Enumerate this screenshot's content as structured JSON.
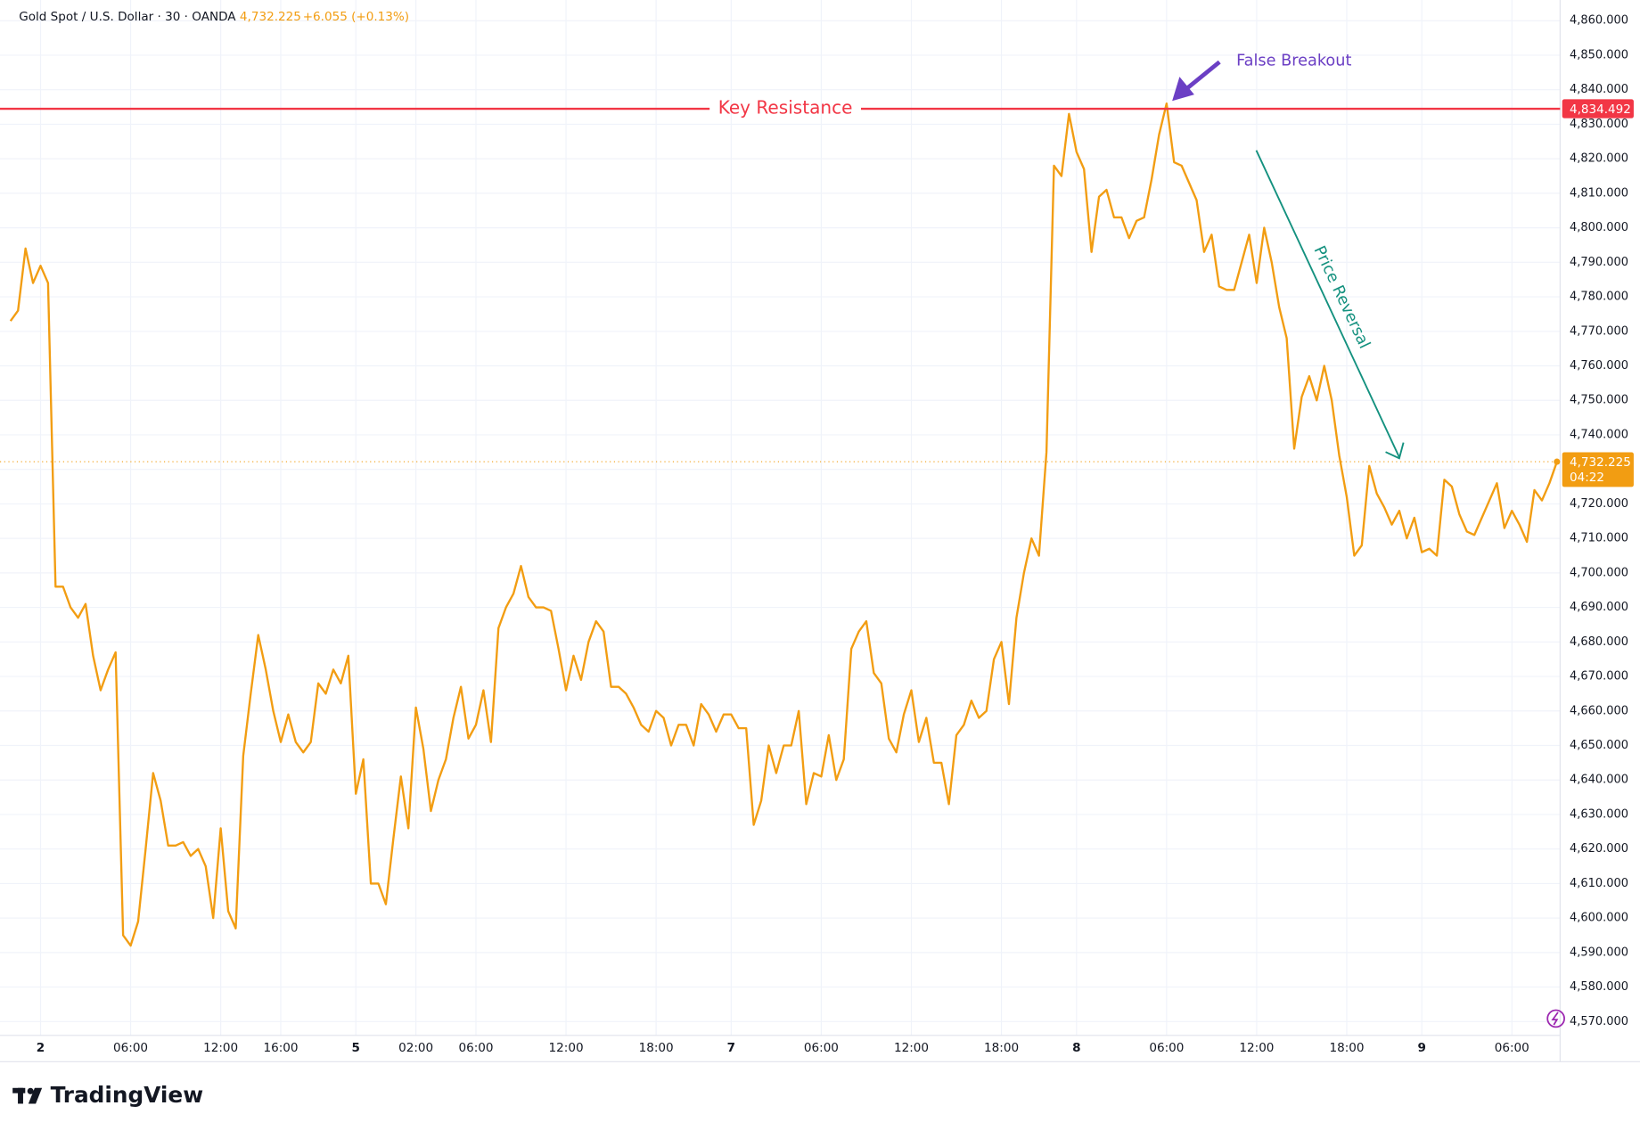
{
  "chart_data": {
    "type": "line",
    "header": {
      "symbol": "Gold Spot / U.S. Dollar · 30 · OANDA",
      "last_price": "4,732.225",
      "change": "+6.055 (+0.13%)",
      "countdown": "04:22"
    },
    "brand": "TradingView",
    "color": "#f29d12",
    "grid": true,
    "categories": [
      null,
      null,
      null,
      null,
      "2",
      null,
      null,
      null,
      null,
      null,
      null,
      null,
      null,
      null,
      null,
      null,
      "06:00",
      null,
      null,
      null,
      null,
      null,
      null,
      null,
      null,
      null,
      null,
      null,
      "12:00",
      null,
      null,
      null,
      null,
      null,
      null,
      null,
      "16:00",
      null,
      null,
      null,
      null,
      null,
      null,
      null,
      null,
      null,
      "5",
      null,
      null,
      null,
      null,
      null,
      null,
      null,
      "02:00",
      null,
      null,
      null,
      null,
      null,
      null,
      null,
      "06:00",
      null,
      null,
      null,
      null,
      null,
      null,
      null,
      null,
      null,
      null,
      null,
      "12:00",
      null,
      null,
      null,
      null,
      null,
      null,
      null,
      null,
      null,
      null,
      null,
      "18:00",
      null,
      null,
      null,
      null,
      null,
      null,
      null,
      null,
      null,
      "7",
      null,
      null,
      null,
      null,
      null,
      null,
      null,
      null,
      null,
      null,
      null,
      "06:00",
      null,
      null,
      null,
      null,
      null,
      null,
      null,
      null,
      null,
      null,
      null,
      "12:00",
      null,
      null,
      null,
      null,
      null,
      null,
      null,
      null,
      null,
      null,
      null,
      "18:00",
      null,
      null,
      null,
      null,
      null,
      null,
      null,
      null,
      null,
      "8",
      null,
      null,
      null,
      null,
      null,
      null,
      null,
      null,
      null,
      null,
      null,
      "06:00",
      null,
      null,
      null,
      null,
      null,
      null,
      null,
      null,
      null,
      null,
      null,
      "12:00",
      null,
      null,
      null,
      null,
      null,
      null,
      null,
      null,
      null,
      null,
      null,
      "18:00",
      null,
      null,
      null,
      null,
      null,
      null,
      null,
      null,
      null,
      "9",
      null,
      null,
      null,
      null,
      null,
      null,
      null,
      null,
      null,
      null,
      null,
      "06:00",
      null,
      null,
      null,
      null,
      null,
      null
    ],
    "values": [
      4773,
      4776,
      4794,
      4784,
      4789,
      4784,
      4696,
      4696,
      4690,
      4687,
      4691,
      4676,
      4666,
      4672,
      4677,
      4595,
      4592,
      4599,
      4620,
      4642,
      4634,
      4621,
      4621,
      4622,
      4618,
      4620,
      4615,
      4600,
      4626,
      4602,
      4597,
      4647,
      4665,
      4682,
      4672,
      4660,
      4651,
      4659,
      4651,
      4648,
      4651,
      4668,
      4665,
      4672,
      4668,
      4676,
      4636,
      4646,
      4610,
      4610,
      4604,
      4623,
      4641,
      4626,
      4661,
      4649,
      4631,
      4640,
      4646,
      4658,
      4667,
      4652,
      4656,
      4666,
      4651,
      4684,
      4690,
      4694,
      4702,
      4693,
      4690,
      4690,
      4689,
      4678,
      4666,
      4676,
      4669,
      4680,
      4686,
      4683,
      4667,
      4667,
      4665,
      4661,
      4656,
      4654,
      4660,
      4658,
      4650,
      4656,
      4656,
      4650,
      4662,
      4659,
      4654,
      4659,
      4659,
      4655,
      4655,
      4627,
      4634,
      4650,
      4642,
      4650,
      4650,
      4660,
      4633,
      4642,
      4641,
      4653,
      4640,
      4646,
      4678,
      4683,
      4686,
      4671,
      4668,
      4652,
      4648,
      4659,
      4666,
      4651,
      4658,
      4645,
      4645,
      4633,
      4653,
      4656,
      4663,
      4658,
      4660,
      4675,
      4680,
      4662,
      4687,
      4700,
      4710,
      4705,
      4735,
      4818,
      4815,
      4833,
      4822,
      4817,
      4793,
      4809,
      4811,
      4803,
      4803,
      4797,
      4802,
      4803,
      4814,
      4827,
      4836,
      4819,
      4818,
      4813,
      4808,
      4793,
      4798,
      4783,
      4782,
      4782,
      4790,
      4798,
      4784,
      4800,
      4790,
      4777,
      4768,
      4736,
      4751,
      4757,
      4750,
      4760,
      4750,
      4734,
      4722,
      4705,
      4708,
      4731,
      4723,
      4719,
      4714,
      4718,
      4710,
      4716,
      4706,
      4707,
      4705,
      4727,
      4725,
      4717,
      4712,
      4711,
      4716,
      4721,
      4726,
      4713,
      4718,
      4714,
      4709,
      4724,
      4721,
      4726,
      4732.225
    ],
    "ylim": [
      4566,
      4866
    ],
    "yticks": [
      {
        "value": 4570,
        "label": "4,570.000"
      },
      {
        "value": 4580,
        "label": "4,580.000"
      },
      {
        "value": 4590,
        "label": "4,590.000"
      },
      {
        "value": 4600,
        "label": "4,600.000"
      },
      {
        "value": 4610,
        "label": "4,610.000"
      },
      {
        "value": 4620,
        "label": "4,620.000"
      },
      {
        "value": 4630,
        "label": "4,630.000"
      },
      {
        "value": 4640,
        "label": "4,640.000"
      },
      {
        "value": 4650,
        "label": "4,650.000"
      },
      {
        "value": 4660,
        "label": "4,660.000"
      },
      {
        "value": 4670,
        "label": "4,670.000"
      },
      {
        "value": 4680,
        "label": "4,680.000"
      },
      {
        "value": 4690,
        "label": "4,690.000"
      },
      {
        "value": 4700,
        "label": "4,700.000"
      },
      {
        "value": 4710,
        "label": "4,710.000"
      },
      {
        "value": 4720,
        "label": "4,720.000"
      },
      {
        "value": 4730,
        "label": "4,730.000"
      },
      {
        "value": 4740,
        "label": "4,740.000"
      },
      {
        "value": 4750,
        "label": "4,750.000"
      },
      {
        "value": 4760,
        "label": "4,760.000"
      },
      {
        "value": 4770,
        "label": "4,770.000"
      },
      {
        "value": 4780,
        "label": "4,780.000"
      },
      {
        "value": 4790,
        "label": "4,790.000"
      },
      {
        "value": 4800,
        "label": "4,800.000"
      },
      {
        "value": 4810,
        "label": "4,810.000"
      },
      {
        "value": 4820,
        "label": "4,820.000"
      },
      {
        "value": 4830,
        "label": "4,830.000"
      },
      {
        "value": 4840,
        "label": "4,840.000"
      },
      {
        "value": 4850,
        "label": "4,850.000"
      },
      {
        "value": 4860,
        "label": "4,860.000"
      }
    ],
    "resistance": {
      "label": "Key Resistance",
      "value": 4834.492,
      "value_label": "4,834.492",
      "color": "#f23645"
    },
    "annotations": [
      {
        "text": "False Breakout",
        "color": "#6b3fc4"
      },
      {
        "text": "Price Reversal",
        "color": "#14917f"
      }
    ]
  }
}
